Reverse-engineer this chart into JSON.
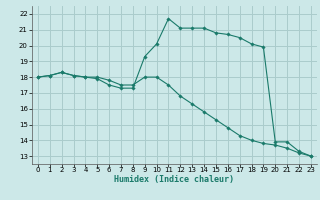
{
  "xlabel": "Humidex (Indice chaleur)",
  "background_color": "#cce8e8",
  "grid_color": "#aacccc",
  "line_color": "#1a7a6a",
  "xlim": [
    -0.5,
    23.5
  ],
  "ylim": [
    12.5,
    22.5
  ],
  "xticks": [
    0,
    1,
    2,
    3,
    4,
    5,
    6,
    7,
    8,
    9,
    10,
    11,
    12,
    13,
    14,
    15,
    16,
    17,
    18,
    19,
    20,
    21,
    22,
    23
  ],
  "yticks": [
    13,
    14,
    15,
    16,
    17,
    18,
    19,
    20,
    21,
    22
  ],
  "line1_x": [
    0,
    1,
    2,
    3,
    4,
    5,
    6,
    7,
    8,
    9,
    10,
    11,
    12,
    13,
    14,
    15,
    16,
    17,
    18,
    19,
    20,
    21,
    22,
    23
  ],
  "line1_y": [
    18.0,
    18.1,
    18.3,
    18.1,
    18.0,
    17.9,
    17.5,
    17.3,
    17.3,
    19.3,
    20.1,
    21.7,
    21.1,
    21.1,
    21.1,
    20.8,
    20.7,
    20.5,
    20.1,
    19.9,
    13.9,
    13.9,
    13.3,
    13.0
  ],
  "line2_x": [
    0,
    1,
    2,
    3,
    4,
    5,
    6,
    7,
    8,
    9,
    10,
    11,
    12,
    13,
    14,
    15,
    16,
    17,
    18,
    19,
    20,
    21,
    22,
    23
  ],
  "line2_y": [
    18.0,
    18.1,
    18.3,
    18.1,
    18.0,
    18.0,
    17.8,
    17.5,
    17.5,
    18.0,
    18.0,
    17.5,
    16.8,
    16.3,
    15.8,
    15.3,
    14.8,
    14.3,
    14.0,
    13.8,
    13.7,
    13.5,
    13.2,
    13.0
  ]
}
